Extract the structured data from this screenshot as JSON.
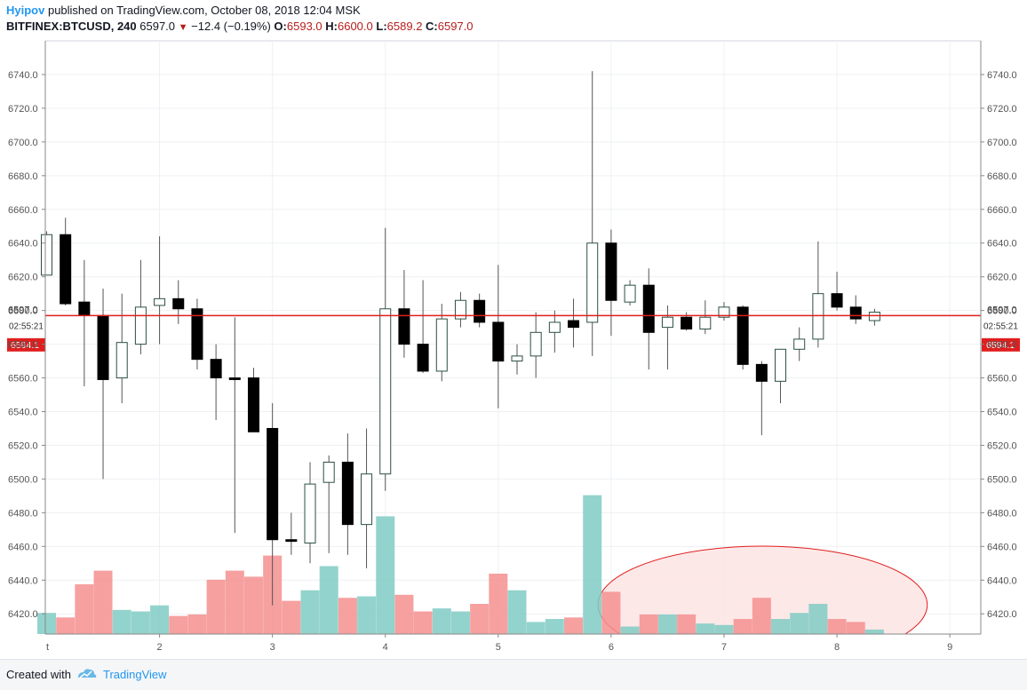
{
  "header": {
    "author": "Hyipov",
    "published_text": "published on TradingView.com, October 08, 2018 12:04 MSK",
    "symbol": "BITFINEX:BTCUSD, 240",
    "last": "6597.0",
    "change_arrow": "▼",
    "change": "−12.4 (−0.19%)",
    "o_label": "O:",
    "o": "6593.0",
    "h_label": "H:",
    "h": "6600.0",
    "l_label": "L:",
    "l": "6589.2",
    "c_label": "C:",
    "c": "6597.0"
  },
  "footer": {
    "created_with": "Created with",
    "brand": "TradingView",
    "logo_icon": "tradingview-logo-icon"
  },
  "colors": {
    "up_body": "#ffffff",
    "up_border": "#2c5040",
    "down_body": "#000000",
    "wick": "#555555",
    "vol_up": "#80cbc4",
    "vol_down": "#f48f8f",
    "price_line": "#e01e1e",
    "highlight_fill": "#fde4e4",
    "highlight_stroke": "#e01e1e",
    "grid": "#eef0f3"
  },
  "chart_data": {
    "type": "candlestick",
    "title": "BITFINEX:BTCUSD, 240",
    "ylim": [
      6408,
      6760
    ],
    "y_ticks": [
      "6740.0",
      "6720.0",
      "6700.0",
      "6680.0",
      "6660.0",
      "6640.0",
      "6620.0",
      "6600.0",
      "6580.0",
      "6560.0",
      "6540.0",
      "6520.0",
      "6500.0",
      "6480.0",
      "6460.0",
      "6440.0",
      "6420.0"
    ],
    "x_ticks": [
      "2",
      "3",
      "4",
      "5",
      "6",
      "7",
      "8",
      "9"
    ],
    "x_tick_index": [
      6,
      12,
      18,
      24,
      30,
      36,
      42,
      48
    ],
    "left_edge_tick": "t",
    "current_price": "6597.0",
    "current_price_value": 6597.0,
    "countdown": "02:55:21",
    "marker_price": "6594.1",
    "marker_price_value": 6594.1,
    "volume_max": 100,
    "highlight": {
      "label": "",
      "from_index": 29.3,
      "to_index": 46.8
    },
    "candles": [
      {
        "o": 6621,
        "h": 6647,
        "l": 6621,
        "c": 6645,
        "vol": 14,
        "dir": "up"
      },
      {
        "o": 6645,
        "h": 6655,
        "l": 6603,
        "c": 6604,
        "vol": 11,
        "dir": "down"
      },
      {
        "o": 6605,
        "h": 6630,
        "l": 6555,
        "c": 6597,
        "vol": 33,
        "dir": "down"
      },
      {
        "o": 6597,
        "h": 6613,
        "l": 6500,
        "c": 6559,
        "vol": 42,
        "dir": "down"
      },
      {
        "o": 6560,
        "h": 6610,
        "l": 6545,
        "c": 6581,
        "vol": 16,
        "dir": "up"
      },
      {
        "o": 6580,
        "h": 6630,
        "l": 6574,
        "c": 6602,
        "vol": 15,
        "dir": "up"
      },
      {
        "o": 6603,
        "h": 6644,
        "l": 6580,
        "c": 6607,
        "vol": 19,
        "dir": "up"
      },
      {
        "o": 6607,
        "h": 6618,
        "l": 6592,
        "c": 6601,
        "vol": 12,
        "dir": "down"
      },
      {
        "o": 6601,
        "h": 6607,
        "l": 6565,
        "c": 6571,
        "vol": 13,
        "dir": "down"
      },
      {
        "o": 6571,
        "h": 6580,
        "l": 6535,
        "c": 6560,
        "vol": 36,
        "dir": "down"
      },
      {
        "o": 6560,
        "h": 6596,
        "l": 6468,
        "c": 6559,
        "vol": 42,
        "dir": "down"
      },
      {
        "o": 6560,
        "h": 6566,
        "l": 6528,
        "c": 6528,
        "vol": 38,
        "dir": "down"
      },
      {
        "o": 6530,
        "h": 6545,
        "l": 6425,
        "c": 6464,
        "vol": 52,
        "dir": "down"
      },
      {
        "o": 6464,
        "h": 6480,
        "l": 6455,
        "c": 6463,
        "vol": 22,
        "dir": "down"
      },
      {
        "o": 6462,
        "h": 6510,
        "l": 6450,
        "c": 6497,
        "vol": 29,
        "dir": "up"
      },
      {
        "o": 6498,
        "h": 6514,
        "l": 6456,
        "c": 6510,
        "vol": 45,
        "dir": "up"
      },
      {
        "o": 6510,
        "h": 6527,
        "l": 6455,
        "c": 6473,
        "vol": 24,
        "dir": "down"
      },
      {
        "o": 6473,
        "h": 6530,
        "l": 6447,
        "c": 6503,
        "vol": 25,
        "dir": "up"
      },
      {
        "o": 6503,
        "h": 6649,
        "l": 6493,
        "c": 6601,
        "vol": 78,
        "dir": "up"
      },
      {
        "o": 6601,
        "h": 6624,
        "l": 6572,
        "c": 6580,
        "vol": 26,
        "dir": "down"
      },
      {
        "o": 6580,
        "h": 6618,
        "l": 6563,
        "c": 6564,
        "vol": 15,
        "dir": "down"
      },
      {
        "o": 6564,
        "h": 6604,
        "l": 6558,
        "c": 6595,
        "vol": 17,
        "dir": "up"
      },
      {
        "o": 6595,
        "h": 6611,
        "l": 6590,
        "c": 6606,
        "vol": 15,
        "dir": "up"
      },
      {
        "o": 6606,
        "h": 6610,
        "l": 6590,
        "c": 6593,
        "vol": 20,
        "dir": "down"
      },
      {
        "o": 6593,
        "h": 6627,
        "l": 6542,
        "c": 6570,
        "vol": 40,
        "dir": "down"
      },
      {
        "o": 6570,
        "h": 6580,
        "l": 6562,
        "c": 6573,
        "vol": 29,
        "dir": "up"
      },
      {
        "o": 6573,
        "h": 6599,
        "l": 6560,
        "c": 6587,
        "vol": 8,
        "dir": "up"
      },
      {
        "o": 6587,
        "h": 6600,
        "l": 6575,
        "c": 6593,
        "vol": 10,
        "dir": "up"
      },
      {
        "o": 6594,
        "h": 6607,
        "l": 6578,
        "c": 6590,
        "vol": 11,
        "dir": "down"
      },
      {
        "o": 6593,
        "h": 6742,
        "l": 6573,
        "c": 6640,
        "vol": 92,
        "dir": "up"
      },
      {
        "o": 6640,
        "h": 6648,
        "l": 6585,
        "c": 6606,
        "vol": 28,
        "dir": "down"
      },
      {
        "o": 6605,
        "h": 6618,
        "l": 6603,
        "c": 6615,
        "vol": 5,
        "dir": "up"
      },
      {
        "o": 6615,
        "h": 6625,
        "l": 6565,
        "c": 6587,
        "vol": 13,
        "dir": "down"
      },
      {
        "o": 6590,
        "h": 6603,
        "l": 6565,
        "c": 6596,
        "vol": 13,
        "dir": "up"
      },
      {
        "o": 6596,
        "h": 6599,
        "l": 6588,
        "c": 6589,
        "vol": 13,
        "dir": "down"
      },
      {
        "o": 6589,
        "h": 6606,
        "l": 6586,
        "c": 6596,
        "vol": 7,
        "dir": "up"
      },
      {
        "o": 6596,
        "h": 6605,
        "l": 6594,
        "c": 6602,
        "vol": 6,
        "dir": "up"
      },
      {
        "o": 6602,
        "h": 6603,
        "l": 6565,
        "c": 6568,
        "vol": 10,
        "dir": "down"
      },
      {
        "o": 6568,
        "h": 6570,
        "l": 6526,
        "c": 6558,
        "vol": 24,
        "dir": "down"
      },
      {
        "o": 6558,
        "h": 6575,
        "l": 6545,
        "c": 6577,
        "vol": 10,
        "dir": "up"
      },
      {
        "o": 6577,
        "h": 6590,
        "l": 6570,
        "c": 6583,
        "vol": 14,
        "dir": "up"
      },
      {
        "o": 6583,
        "h": 6641,
        "l": 6578,
        "c": 6610,
        "vol": 20,
        "dir": "up"
      },
      {
        "o": 6610,
        "h": 6623,
        "l": 6600,
        "c": 6602,
        "vol": 10,
        "dir": "down"
      },
      {
        "o": 6602,
        "h": 6609,
        "l": 6592,
        "c": 6595,
        "vol": 8,
        "dir": "down"
      },
      {
        "o": 6594,
        "h": 6601,
        "l": 6591,
        "c": 6599,
        "vol": 3,
        "dir": "up"
      }
    ]
  }
}
